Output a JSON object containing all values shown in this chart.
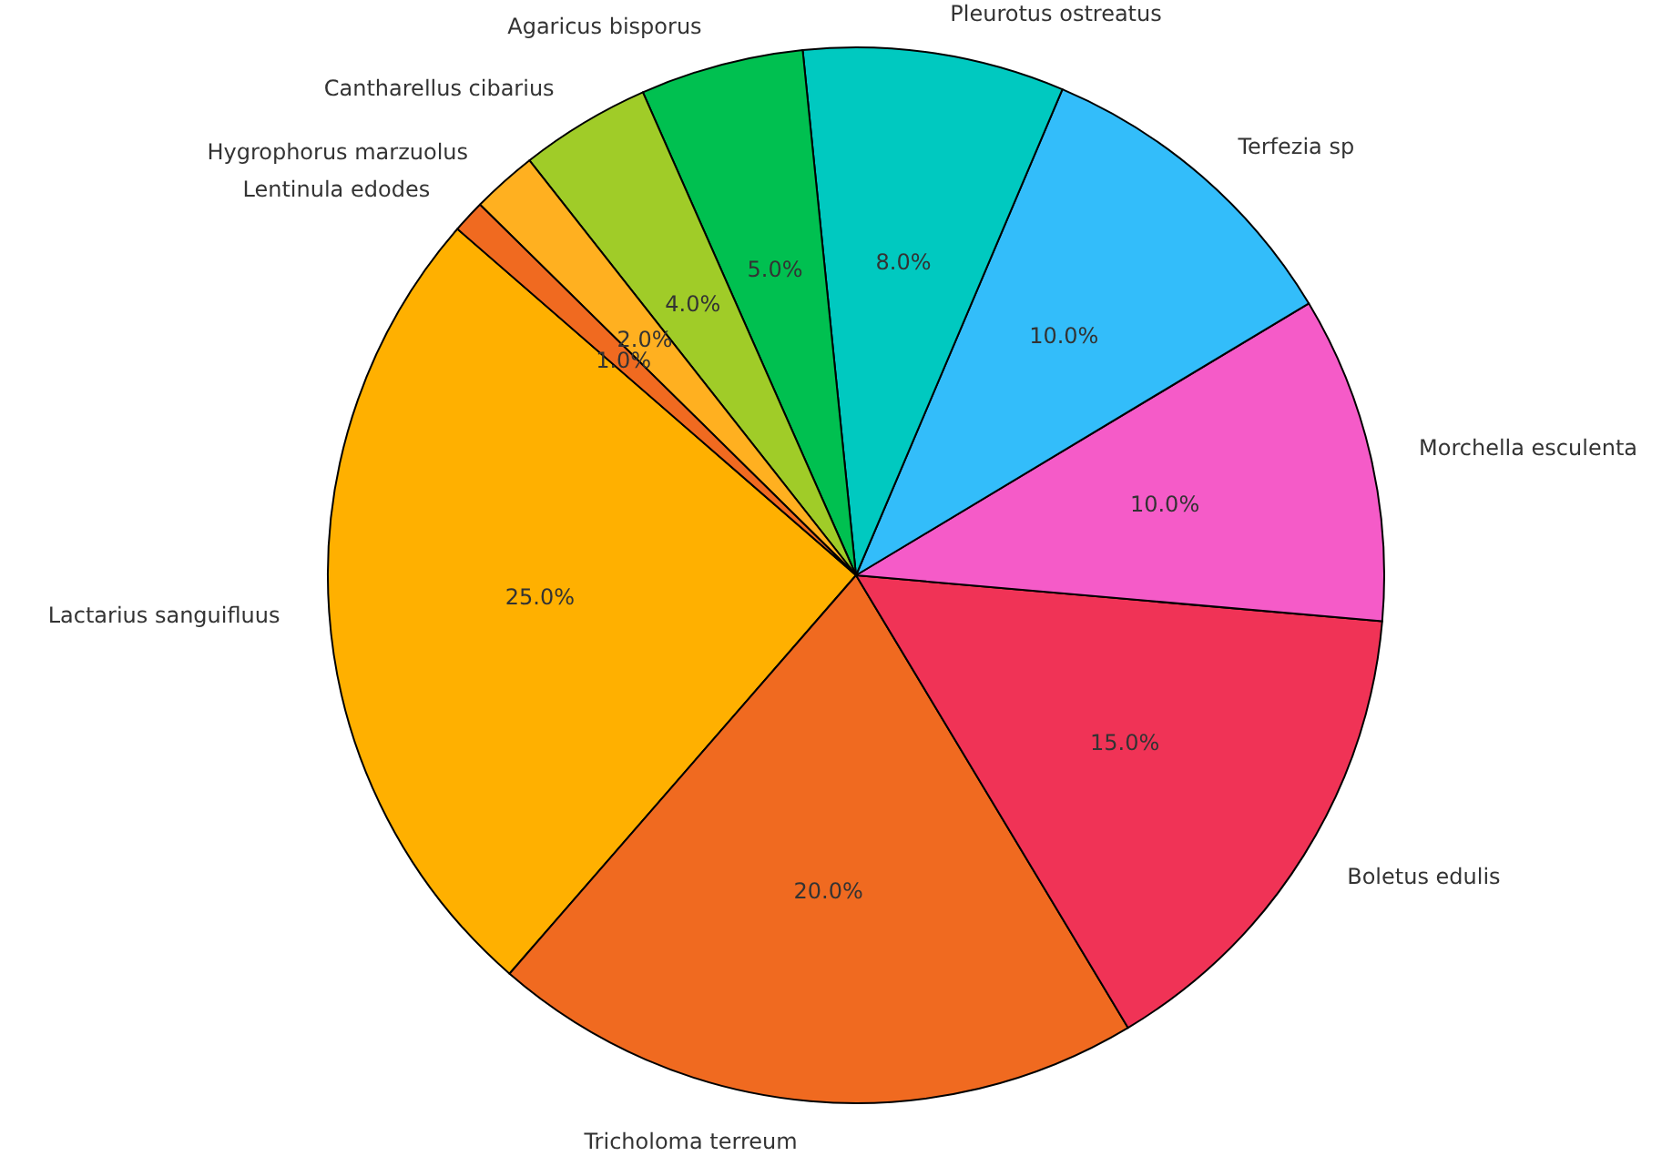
{
  "chart_data": {
    "type": "pie",
    "categories": [
      "Lactarius sanguifluus",
      "Tricholoma terreum",
      "Boletus edulis",
      "Morchella esculenta",
      "Terfezia sp",
      "Pleurotus ostreatus",
      "Agaricus bisporus",
      "Cantharellus cibarius",
      "Hygrophorus marzuolus",
      "Lentinula edodes"
    ],
    "values": [
      25,
      20,
      15,
      10,
      10,
      8,
      5,
      4,
      2,
      1
    ],
    "value_labels": [
      "25.0%",
      "20.0%",
      "15.0%",
      "10.0%",
      "10.0%",
      "8.0%",
      "5.0%",
      "4.0%",
      "2.0%",
      "1.0%"
    ],
    "colors": [
      "#ffb000",
      "#f06a20",
      "#f03356",
      "#f55bc8",
      "#33bdfa",
      "#00c9c0",
      "#00c050",
      "#a0cc28",
      "#ffb020",
      "#f06a20"
    ]
  }
}
